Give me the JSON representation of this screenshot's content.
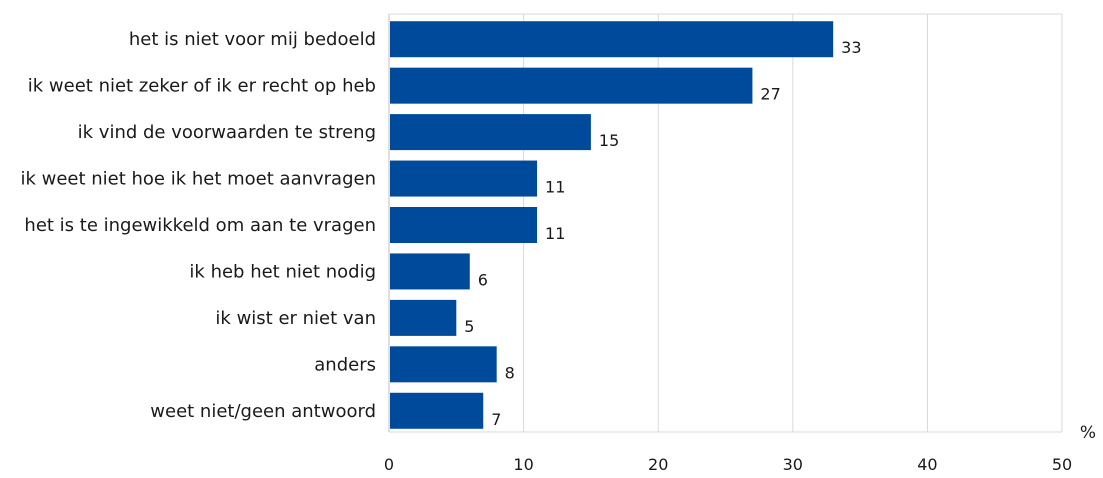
{
  "chart_data": {
    "type": "bar",
    "orientation": "horizontal",
    "categories": [
      "het is niet voor mij bedoeld",
      "ik weet niet zeker of ik er recht op heb",
      "ik vind de voorwaarden te streng",
      "ik weet niet hoe ik het moet aanvragen",
      "het is te ingewikkeld om aan te vragen",
      "ik heb het niet nodig",
      "ik wist er niet van",
      "anders",
      "weet niet/geen antwoord"
    ],
    "values": [
      33,
      27,
      15,
      11,
      11,
      6,
      5,
      8,
      7
    ],
    "value_labels": [
      "33",
      "27",
      "15",
      "11",
      "11",
      "6",
      "5",
      "8",
      "7"
    ],
    "x_ticks": [
      "0",
      "10",
      "20",
      "30",
      "40",
      "50"
    ],
    "xlim": [
      0,
      50
    ],
    "xlabel": "%",
    "grid": true,
    "colors": {
      "bar": "#004a9b",
      "grid": "#d9d9d9",
      "axis": "#bfbfbf"
    }
  }
}
